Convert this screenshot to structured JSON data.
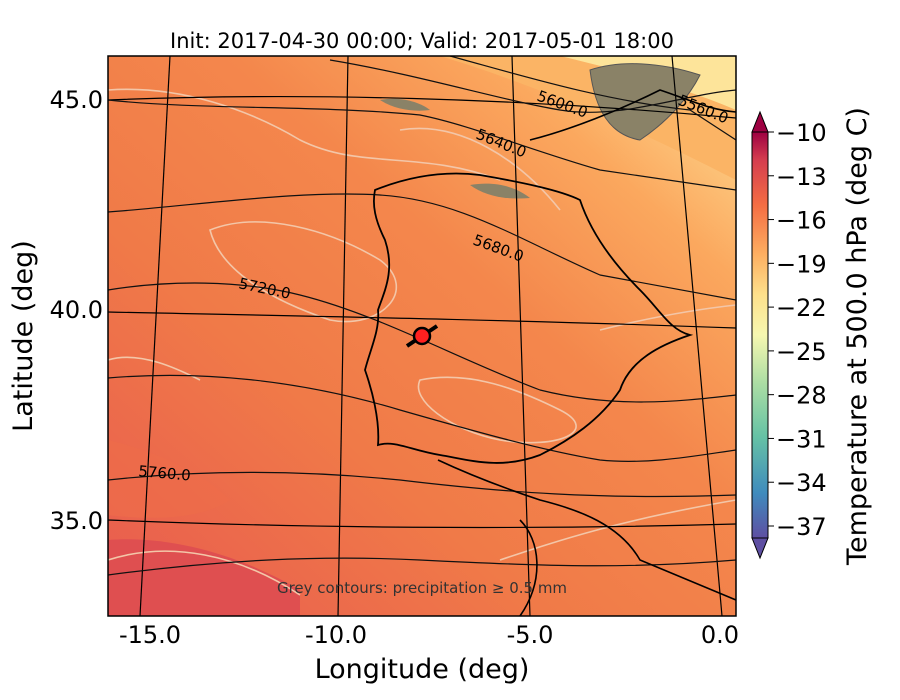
{
  "map": {
    "title": "Init: 2017-04-30 00:00; Valid: 2017-05-01 18:00",
    "xlabel": "Longitude (deg)",
    "ylabel": "Latitude (deg)",
    "x_ticks": [
      "-15.0",
      "-10.0",
      "-5.0",
      "0.0"
    ],
    "y_ticks": [
      "45.0",
      "40.0",
      "35.0"
    ],
    "note": "Grey contours: precipitation ≥ 0.5 mm",
    "contour_labels": [
      "5560.0",
      "5600.0",
      "5640.0",
      "5680.0",
      "5720.0",
      "5760.0"
    ],
    "marker": {
      "name": "station",
      "lon": -7.6,
      "lat": 39.3,
      "color": "#ff2020"
    }
  },
  "colorbar": {
    "label": "Temperature at 500.0 hPa (deg C)",
    "ticks": [
      "−10",
      "−13",
      "−16",
      "−19",
      "−22",
      "−25",
      "−28",
      "−31",
      "−34",
      "−37"
    ],
    "colormap": "Spectral",
    "colors": [
      "#5e4fa2",
      "#3f8bbd",
      "#66c2a5",
      "#abdda4",
      "#e6f598",
      "#fee08b",
      "#fdae61",
      "#f46d43",
      "#d53e4f",
      "#9e0142"
    ]
  }
}
